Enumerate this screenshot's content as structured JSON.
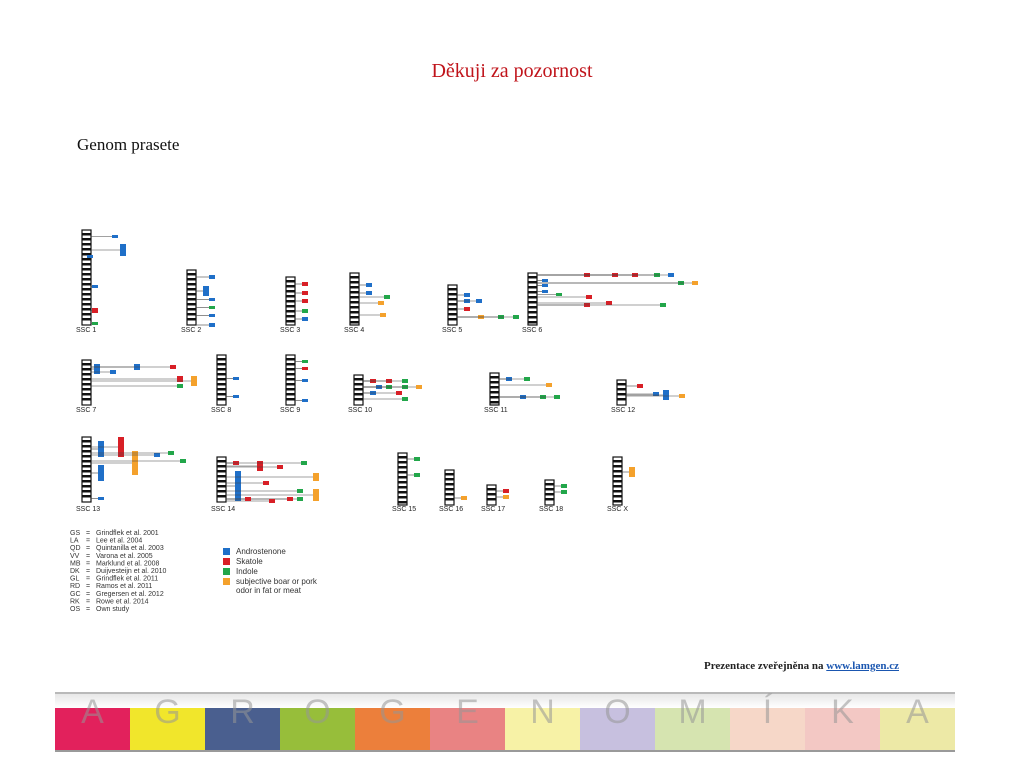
{
  "slide": {
    "title": "Děkuji za pozornost",
    "subtitle": "Genom prasete",
    "footer_prefix": "Prezentace zveřejněna na ",
    "footer_link": "www.lamgen.cz"
  },
  "figure": {
    "chromosomes": [
      {
        "label": "SSC 1"
      },
      {
        "label": "SSC 2"
      },
      {
        "label": "SSC 3"
      },
      {
        "label": "SSC 4"
      },
      {
        "label": "SSC 5"
      },
      {
        "label": "SSC 6"
      },
      {
        "label": "SSC 7"
      },
      {
        "label": "SSC 8"
      },
      {
        "label": "SSC 9"
      },
      {
        "label": "SSC 10"
      },
      {
        "label": "SSC 11"
      },
      {
        "label": "SSC 12"
      },
      {
        "label": "SSC 13"
      },
      {
        "label": "SSC 14"
      },
      {
        "label": "SSC 15"
      },
      {
        "label": "SSC 16"
      },
      {
        "label": "SSC 17"
      },
      {
        "label": "SSC 18"
      },
      {
        "label": "SSC X"
      }
    ],
    "studies": [
      {
        "code": "GS",
        "ref": "Grindflek et al. 2001"
      },
      {
        "code": "LA",
        "ref": "Lee et al. 2004"
      },
      {
        "code": "QD",
        "ref": "Quintanilla et al. 2003"
      },
      {
        "code": "VV",
        "ref": "Varona et al. 2005"
      },
      {
        "code": "MB",
        "ref": "Marklund et al. 2008"
      },
      {
        "code": "DK",
        "ref": "Duijvesteijn et al. 2010"
      },
      {
        "code": "GL",
        "ref": "Grindflek et al. 2011"
      },
      {
        "code": "RD",
        "ref": "Ramos et al. 2011"
      },
      {
        "code": "GC",
        "ref": "Gregersen et al. 2012"
      },
      {
        "code": "RK",
        "ref": "Rowe et al. 2014"
      },
      {
        "code": "OS",
        "ref": "Own study"
      }
    ],
    "traits": [
      {
        "color": "#1f6fc8",
        "line1": "Androstenone",
        "line2": ""
      },
      {
        "color": "#d81f26",
        "line1": "Skatole",
        "line2": ""
      },
      {
        "color": "#22a64a",
        "line1": "Indole",
        "line2": ""
      },
      {
        "color": "#f4a12c",
        "line1": "subjective boar or pork",
        "line2": "odor in fat or meat"
      }
    ]
  },
  "banner": {
    "letters": [
      "A",
      "G",
      "R",
      "O",
      "G",
      "E",
      "N",
      "O",
      "M",
      "Í",
      "K",
      "A"
    ],
    "colors": [
      "#e2215c",
      "#f1e62b",
      "#4a5f8f",
      "#97be3a",
      "#ec7f3b",
      "#e98383",
      "#f7f2a6",
      "#c7c0df",
      "#d6e4b0",
      "#f6d7c8",
      "#f3c8c4",
      "#ede9a6"
    ]
  }
}
